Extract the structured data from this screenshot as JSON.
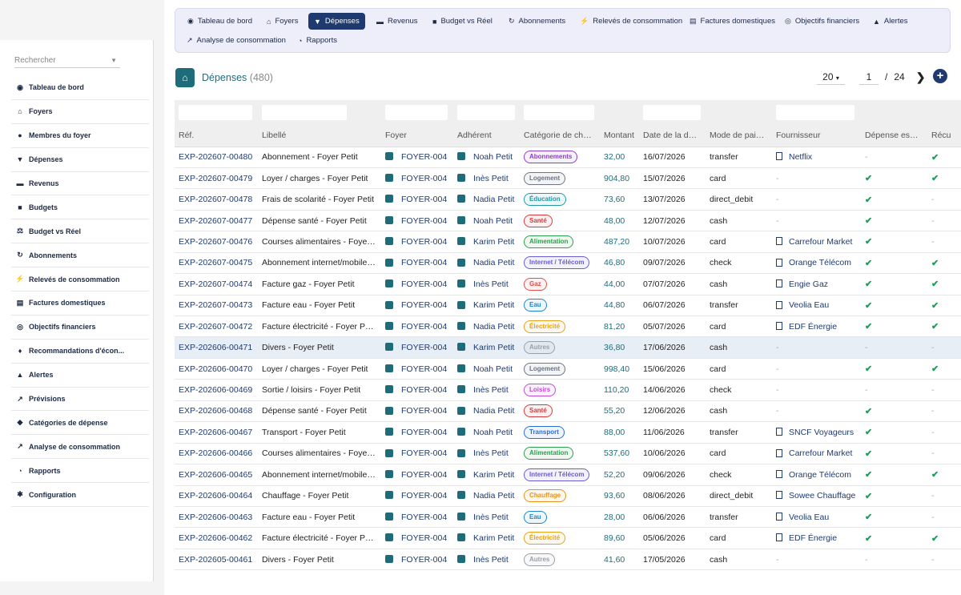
{
  "sidebar": {
    "search_placeholder": "Rechercher",
    "items": [
      {
        "label": "Tableau de bord",
        "icon": "dashboard-icon",
        "glyph": "◉"
      },
      {
        "label": "Foyers",
        "icon": "home-icon",
        "glyph": "⌂"
      },
      {
        "label": "Membres du foyer",
        "icon": "user-icon",
        "glyph": "●"
      },
      {
        "label": "Dépenses",
        "icon": "cart-icon",
        "glyph": "▼"
      },
      {
        "label": "Revenus",
        "icon": "money-icon",
        "glyph": "▬"
      },
      {
        "label": "Budgets",
        "icon": "wallet-icon",
        "glyph": "■"
      },
      {
        "label": "Budget vs Réel",
        "icon": "scale-icon",
        "glyph": "⚖"
      },
      {
        "label": "Abonnements",
        "icon": "sync-icon",
        "glyph": "↻"
      },
      {
        "label": "Relevés de consommation",
        "icon": "bolt-icon",
        "glyph": "⚡"
      },
      {
        "label": "Factures domestiques",
        "icon": "invoice-icon",
        "glyph": "▤"
      },
      {
        "label": "Objectifs financiers",
        "icon": "target-icon",
        "glyph": "◎"
      },
      {
        "label": "Recommandations d'écon...",
        "icon": "bulb-icon",
        "glyph": "♦"
      },
      {
        "label": "Alertes",
        "icon": "bell-icon",
        "glyph": "▲"
      },
      {
        "label": "Prévisions",
        "icon": "trend-icon",
        "glyph": "↗"
      },
      {
        "label": "Catégories de dépense",
        "icon": "tag-icon",
        "glyph": "◆"
      },
      {
        "label": "Analyse de consommation",
        "icon": "chart-line-icon",
        "glyph": "↗"
      },
      {
        "label": "Rapports",
        "icon": "pie-chart-icon",
        "glyph": "◔"
      },
      {
        "label": "Configuration",
        "icon": "gear-icon",
        "glyph": "✱"
      }
    ]
  },
  "topnav": {
    "items": [
      {
        "label": "Tableau de bord",
        "icon": "dashboard-icon",
        "glyph": "◉"
      },
      {
        "label": "Foyers",
        "icon": "home-icon",
        "glyph": "⌂"
      },
      {
        "label": "Dépenses",
        "icon": "cart-icon",
        "glyph": "▼"
      },
      {
        "label": "Revenus",
        "icon": "money-icon",
        "glyph": "▬"
      },
      {
        "label": "Budget vs Réel",
        "icon": "scale-icon",
        "glyph": "■"
      },
      {
        "label": "Abonnements",
        "icon": "sync-icon",
        "glyph": "↻"
      },
      {
        "label": "Relevés de consommation",
        "icon": "bolt-icon",
        "glyph": "⚡"
      },
      {
        "label": "Factures domestiques",
        "icon": "invoice-icon",
        "glyph": "▤"
      },
      {
        "label": "Objectifs financiers",
        "icon": "target-icon",
        "glyph": "◎"
      },
      {
        "label": "Alertes",
        "icon": "bell-icon",
        "glyph": "▲"
      },
      {
        "label": "Analyse de consommation",
        "icon": "chart-line-icon",
        "glyph": "↗"
      },
      {
        "label": "Rapports",
        "icon": "pie-chart-icon",
        "glyph": "◔"
      }
    ],
    "active": "Dépenses"
  },
  "page": {
    "title": "Dépenses",
    "count": "(480)",
    "page_size": "20",
    "current_page": "1",
    "slash": "/",
    "total_pages": "24",
    "next_glyph": "❯",
    "add_glyph": "+"
  },
  "table": {
    "columns": [
      "Réf.",
      "Libellé",
      "Foyer",
      "Adhérent",
      "Catégorie de ch…",
      "Montant",
      "Date de la d…",
      "Mode de pai…",
      "Fournisseur",
      "Dépense es…",
      "Récu"
    ],
    "rows": [
      {
        "ref": "EXP-202607-00480",
        "label": "Abonnement - Foyer Petit",
        "foyer": "FOYER-004",
        "member": "Noah Petit",
        "cat": "Abonnements",
        "amount": "32,00",
        "date": "16/07/2026",
        "mode": "transfer",
        "supplier": "Netflix",
        "a": "-",
        "b": "✔"
      },
      {
        "ref": "EXP-202607-00479",
        "label": "Loyer / charges - Foyer Petit",
        "foyer": "FOYER-004",
        "member": "Inès Petit",
        "cat": "Logement",
        "amount": "904,80",
        "date": "15/07/2026",
        "mode": "card",
        "supplier": "-",
        "a": "✔",
        "b": "✔"
      },
      {
        "ref": "EXP-202607-00478",
        "label": "Frais de scolarité - Foyer Petit",
        "foyer": "FOYER-004",
        "member": "Nadia Petit",
        "cat": "Éducation",
        "amount": "73,60",
        "date": "13/07/2026",
        "mode": "direct_debit",
        "supplier": "-",
        "a": "✔",
        "b": "-"
      },
      {
        "ref": "EXP-202607-00477",
        "label": "Dépense santé - Foyer Petit",
        "foyer": "FOYER-004",
        "member": "Noah Petit",
        "cat": "Santé",
        "amount": "48,00",
        "date": "12/07/2026",
        "mode": "cash",
        "supplier": "-",
        "a": "✔",
        "b": "-"
      },
      {
        "ref": "EXP-202607-00476",
        "label": "Courses alimentaires - Foye…",
        "foyer": "FOYER-004",
        "member": "Karim Petit",
        "cat": "Alimentation",
        "amount": "487,20",
        "date": "10/07/2026",
        "mode": "card",
        "supplier": "Carrefour Market",
        "a": "✔",
        "b": "-"
      },
      {
        "ref": "EXP-202607-00475",
        "label": "Abonnement internet/mobile…",
        "foyer": "FOYER-004",
        "member": "Nadia Petit",
        "cat": "Internet / Télécom",
        "amount": "46,80",
        "date": "09/07/2026",
        "mode": "check",
        "supplier": "Orange Télécom",
        "a": "✔",
        "b": "✔"
      },
      {
        "ref": "EXP-202607-00474",
        "label": "Facture gaz - Foyer Petit",
        "foyer": "FOYER-004",
        "member": "Inès Petit",
        "cat": "Gaz",
        "amount": "44,00",
        "date": "07/07/2026",
        "mode": "cash",
        "supplier": "Engie Gaz",
        "a": "✔",
        "b": "✔"
      },
      {
        "ref": "EXP-202607-00473",
        "label": "Facture eau - Foyer Petit",
        "foyer": "FOYER-004",
        "member": "Karim Petit",
        "cat": "Eau",
        "amount": "44,80",
        "date": "06/07/2026",
        "mode": "transfer",
        "supplier": "Veolia Eau",
        "a": "✔",
        "b": "✔"
      },
      {
        "ref": "EXP-202607-00472",
        "label": "Facture électricité - Foyer P…",
        "foyer": "FOYER-004",
        "member": "Nadia Petit",
        "cat": "Électricité",
        "amount": "81,20",
        "date": "05/07/2026",
        "mode": "card",
        "supplier": "EDF Énergie",
        "a": "✔",
        "b": "✔"
      },
      {
        "ref": "EXP-202606-00471",
        "label": "Divers - Foyer Petit",
        "foyer": "FOYER-004",
        "member": "Karim Petit",
        "cat": "Autres",
        "amount": "36,80",
        "date": "17/06/2026",
        "mode": "cash",
        "supplier": "-",
        "a": "-",
        "b": "-"
      },
      {
        "ref": "EXP-202606-00470",
        "label": "Loyer / charges - Foyer Petit",
        "foyer": "FOYER-004",
        "member": "Noah Petit",
        "cat": "Logement",
        "amount": "998,40",
        "date": "15/06/2026",
        "mode": "card",
        "supplier": "-",
        "a": "✔",
        "b": "✔"
      },
      {
        "ref": "EXP-202606-00469",
        "label": "Sortie / loisirs - Foyer Petit",
        "foyer": "FOYER-004",
        "member": "Inès Petit",
        "cat": "Loisirs",
        "amount": "110,20",
        "date": "14/06/2026",
        "mode": "check",
        "supplier": "-",
        "a": "-",
        "b": "-"
      },
      {
        "ref": "EXP-202606-00468",
        "label": "Dépense santé - Foyer Petit",
        "foyer": "FOYER-004",
        "member": "Nadia Petit",
        "cat": "Santé",
        "amount": "55,20",
        "date": "12/06/2026",
        "mode": "cash",
        "supplier": "-",
        "a": "✔",
        "b": "-"
      },
      {
        "ref": "EXP-202606-00467",
        "label": "Transport - Foyer Petit",
        "foyer": "FOYER-004",
        "member": "Noah Petit",
        "cat": "Transport",
        "amount": "88,00",
        "date": "11/06/2026",
        "mode": "transfer",
        "supplier": "SNCF Voyageurs",
        "a": "✔",
        "b": "-"
      },
      {
        "ref": "EXP-202606-00466",
        "label": "Courses alimentaires - Foye…",
        "foyer": "FOYER-004",
        "member": "Inès Petit",
        "cat": "Alimentation",
        "amount": "537,60",
        "date": "10/06/2026",
        "mode": "card",
        "supplier": "Carrefour Market",
        "a": "✔",
        "b": "-"
      },
      {
        "ref": "EXP-202606-00465",
        "label": "Abonnement internet/mobile…",
        "foyer": "FOYER-004",
        "member": "Karim Petit",
        "cat": "Internet / Télécom",
        "amount": "52,20",
        "date": "09/06/2026",
        "mode": "check",
        "supplier": "Orange Télécom",
        "a": "✔",
        "b": "✔"
      },
      {
        "ref": "EXP-202606-00464",
        "label": "Chauffage - Foyer Petit",
        "foyer": "FOYER-004",
        "member": "Nadia Petit",
        "cat": "Chauffage",
        "amount": "93,60",
        "date": "08/06/2026",
        "mode": "direct_debit",
        "supplier": "Sowee Chauffage",
        "a": "✔",
        "b": "-"
      },
      {
        "ref": "EXP-202606-00463",
        "label": "Facture eau - Foyer Petit",
        "foyer": "FOYER-004",
        "member": "Inès Petit",
        "cat": "Eau",
        "amount": "28,00",
        "date": "06/06/2026",
        "mode": "transfer",
        "supplier": "Veolia Eau",
        "a": "✔",
        "b": "-"
      },
      {
        "ref": "EXP-202606-00462",
        "label": "Facture électricité - Foyer P…",
        "foyer": "FOYER-004",
        "member": "Karim Petit",
        "cat": "Électricité",
        "amount": "89,60",
        "date": "05/06/2026",
        "mode": "card",
        "supplier": "EDF Énergie",
        "a": "✔",
        "b": "✔"
      },
      {
        "ref": "EXP-202605-00461",
        "label": "Divers - Foyer Petit",
        "foyer": "FOYER-004",
        "member": "Inès Petit",
        "cat": "Autres",
        "amount": "41,60",
        "date": "17/05/2026",
        "mode": "cash",
        "supplier": "-",
        "a": "-",
        "b": "-"
      }
    ],
    "highlight_row": 9
  },
  "badge_colors": {
    "Abonnements": "#8a3fc7",
    "Logement": "#6b7585",
    "Éducation": "#1f9aa8",
    "Santé": "#d63b3b",
    "Alimentation": "#2e9e4f",
    "Internet / Télécom": "#6a5bd6",
    "Gaz": "#e05050",
    "Eau": "#1f86c9",
    "Électricité": "#e8a21a",
    "Autres": "#9aa0a8",
    "Loisirs": "#c24bd6",
    "Transport": "#2b6fd6",
    "Chauffage": "#e8931a"
  }
}
